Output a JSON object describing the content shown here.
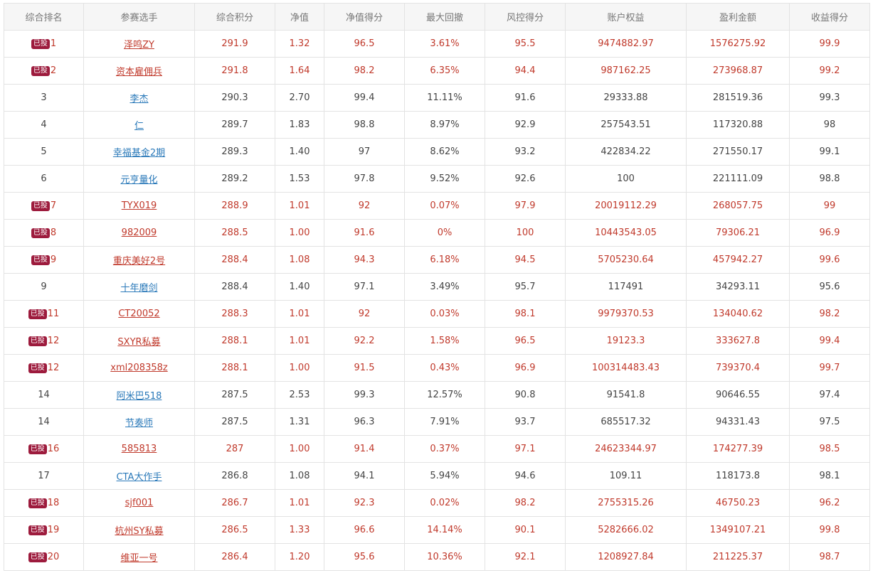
{
  "table": {
    "headers": [
      "综合排名",
      "参赛选手",
      "综合积分",
      "净值",
      "净值得分",
      "最大回撤",
      "风控得分",
      "账户权益",
      "盈利金额",
      "收益得分"
    ],
    "invested_badge": "已投",
    "rows": [
      {
        "badge": "已投",
        "rank": "1",
        "name": "泽鸣ZY",
        "score": "291.9",
        "nav": "1.32",
        "nav_score": "96.5",
        "drawdown": "3.61%",
        "risk_score": "95.5",
        "equity": "9474882.97",
        "profit": "1576275.92",
        "return_score": "99.9"
      },
      {
        "badge": "已投",
        "rank": "2",
        "name": "资本雇佣兵",
        "score": "291.8",
        "nav": "1.64",
        "nav_score": "98.2",
        "drawdown": "6.35%",
        "risk_score": "94.4",
        "equity": "987162.25",
        "profit": "273968.87",
        "return_score": "99.2"
      },
      {
        "badge": "",
        "rank": "3",
        "name": "李杰",
        "score": "290.3",
        "nav": "2.70",
        "nav_score": "99.4",
        "drawdown": "11.11%",
        "risk_score": "91.6",
        "equity": "29333.88",
        "profit": "281519.36",
        "return_score": "99.3"
      },
      {
        "badge": "",
        "rank": "4",
        "name": "仁",
        "score": "289.7",
        "nav": "1.83",
        "nav_score": "98.8",
        "drawdown": "8.97%",
        "risk_score": "92.9",
        "equity": "257543.51",
        "profit": "117320.88",
        "return_score": "98"
      },
      {
        "badge": "",
        "rank": "5",
        "name": "幸福基金2期",
        "score": "289.3",
        "nav": "1.40",
        "nav_score": "97",
        "drawdown": "8.62%",
        "risk_score": "93.2",
        "equity": "422834.22",
        "profit": "271550.17",
        "return_score": "99.1"
      },
      {
        "badge": "",
        "rank": "6",
        "name": "元亨量化",
        "score": "289.2",
        "nav": "1.53",
        "nav_score": "97.8",
        "drawdown": "9.52%",
        "risk_score": "92.6",
        "equity": "100",
        "profit": "221111.09",
        "return_score": "98.8"
      },
      {
        "badge": "已投",
        "rank": "7",
        "name": "TYX019",
        "score": "288.9",
        "nav": "1.01",
        "nav_score": "92",
        "drawdown": "0.07%",
        "risk_score": "97.9",
        "equity": "20019112.29",
        "profit": "268057.75",
        "return_score": "99"
      },
      {
        "badge": "已投",
        "rank": "8",
        "name": "982009",
        "score": "288.5",
        "nav": "1.00",
        "nav_score": "91.6",
        "drawdown": "0%",
        "risk_score": "100",
        "equity": "10443543.05",
        "profit": "79306.21",
        "return_score": "96.9"
      },
      {
        "badge": "已投",
        "rank": "9",
        "name": "重庆美好2号",
        "score": "288.4",
        "nav": "1.08",
        "nav_score": "94.3",
        "drawdown": "6.18%",
        "risk_score": "94.5",
        "equity": "5705230.64",
        "profit": "457942.27",
        "return_score": "99.6"
      },
      {
        "badge": "",
        "rank": "9",
        "name": "十年磨剑",
        "score": "288.4",
        "nav": "1.40",
        "nav_score": "97.1",
        "drawdown": "3.49%",
        "risk_score": "95.7",
        "equity": "117491",
        "profit": "34293.11",
        "return_score": "95.6"
      },
      {
        "badge": "已投",
        "rank": "11",
        "name": "CT20052",
        "score": "288.3",
        "nav": "1.01",
        "nav_score": "92",
        "drawdown": "0.03%",
        "risk_score": "98.1",
        "equity": "9979370.53",
        "profit": "134040.62",
        "return_score": "98.2"
      },
      {
        "badge": "已投",
        "rank": "12",
        "name": "SXYR私募",
        "score": "288.1",
        "nav": "1.01",
        "nav_score": "92.2",
        "drawdown": "1.58%",
        "risk_score": "96.5",
        "equity": "19123.3",
        "profit": "333627.8",
        "return_score": "99.4"
      },
      {
        "badge": "已投",
        "rank": "12",
        "name": "xml208358z",
        "score": "288.1",
        "nav": "1.00",
        "nav_score": "91.5",
        "drawdown": "0.43%",
        "risk_score": "96.9",
        "equity": "100314483.43",
        "profit": "739370.4",
        "return_score": "99.7"
      },
      {
        "badge": "",
        "rank": "14",
        "name": "阿米巴518",
        "score": "287.5",
        "nav": "2.53",
        "nav_score": "99.3",
        "drawdown": "12.57%",
        "risk_score": "90.8",
        "equity": "91541.8",
        "profit": "90646.55",
        "return_score": "97.4"
      },
      {
        "badge": "",
        "rank": "14",
        "name": "节奏师",
        "score": "287.5",
        "nav": "1.31",
        "nav_score": "96.3",
        "drawdown": "7.91%",
        "risk_score": "93.7",
        "equity": "685517.32",
        "profit": "94331.43",
        "return_score": "97.5"
      },
      {
        "badge": "已投",
        "rank": "16",
        "name": "585813",
        "score": "287",
        "nav": "1.00",
        "nav_score": "91.4",
        "drawdown": "0.37%",
        "risk_score": "97.1",
        "equity": "24623344.97",
        "profit": "174277.39",
        "return_score": "98.5"
      },
      {
        "badge": "",
        "rank": "17",
        "name": "CTA大作手",
        "score": "286.8",
        "nav": "1.08",
        "nav_score": "94.1",
        "drawdown": "5.94%",
        "risk_score": "94.6",
        "equity": "109.11",
        "profit": "118173.8",
        "return_score": "98.1"
      },
      {
        "badge": "已投",
        "rank": "18",
        "name": "sjf001",
        "score": "286.7",
        "nav": "1.01",
        "nav_score": "92.3",
        "drawdown": "0.02%",
        "risk_score": "98.2",
        "equity": "2755315.26",
        "profit": "46750.23",
        "return_score": "96.2"
      },
      {
        "badge": "已投",
        "rank": "19",
        "name": "杭州SY私募",
        "score": "286.5",
        "nav": "1.33",
        "nav_score": "96.6",
        "drawdown": "14.14%",
        "risk_score": "90.1",
        "equity": "5282666.02",
        "profit": "1349107.21",
        "return_score": "99.8"
      },
      {
        "badge": "已投",
        "rank": "20",
        "name": "维亚一号",
        "score": "286.4",
        "nav": "1.20",
        "nav_score": "95.6",
        "drawdown": "10.36%",
        "risk_score": "92.1",
        "equity": "1208927.84",
        "profit": "211225.37",
        "return_score": "98.7"
      }
    ]
  },
  "colors": {
    "highlight_text": "#c0392b",
    "normal_text": "#444444",
    "link_blue": "#2a79b9",
    "badge_bg": "#9d1b3d",
    "header_bg": "#f6f6f6",
    "border": "#e3e3e3"
  }
}
